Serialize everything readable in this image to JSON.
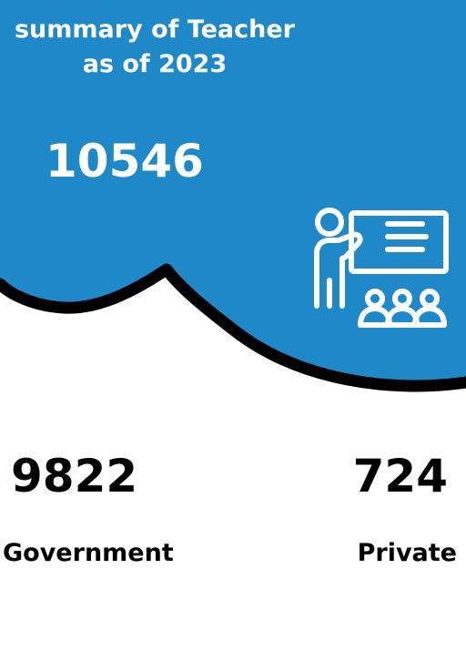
{
  "header": {
    "title_line1": "summary of Teacher",
    "title_line2": "as of 2023"
  },
  "total": {
    "value": "10546"
  },
  "stats": {
    "government": {
      "value": "9822",
      "label": "Government"
    },
    "private": {
      "value": "724",
      "label": "Private"
    }
  },
  "colors": {
    "accent": "#1e88c9",
    "outline": "#000000",
    "text_light": "#ffffff",
    "text_dark": "#000000"
  },
  "icon": "teacher-presentation-icon"
}
